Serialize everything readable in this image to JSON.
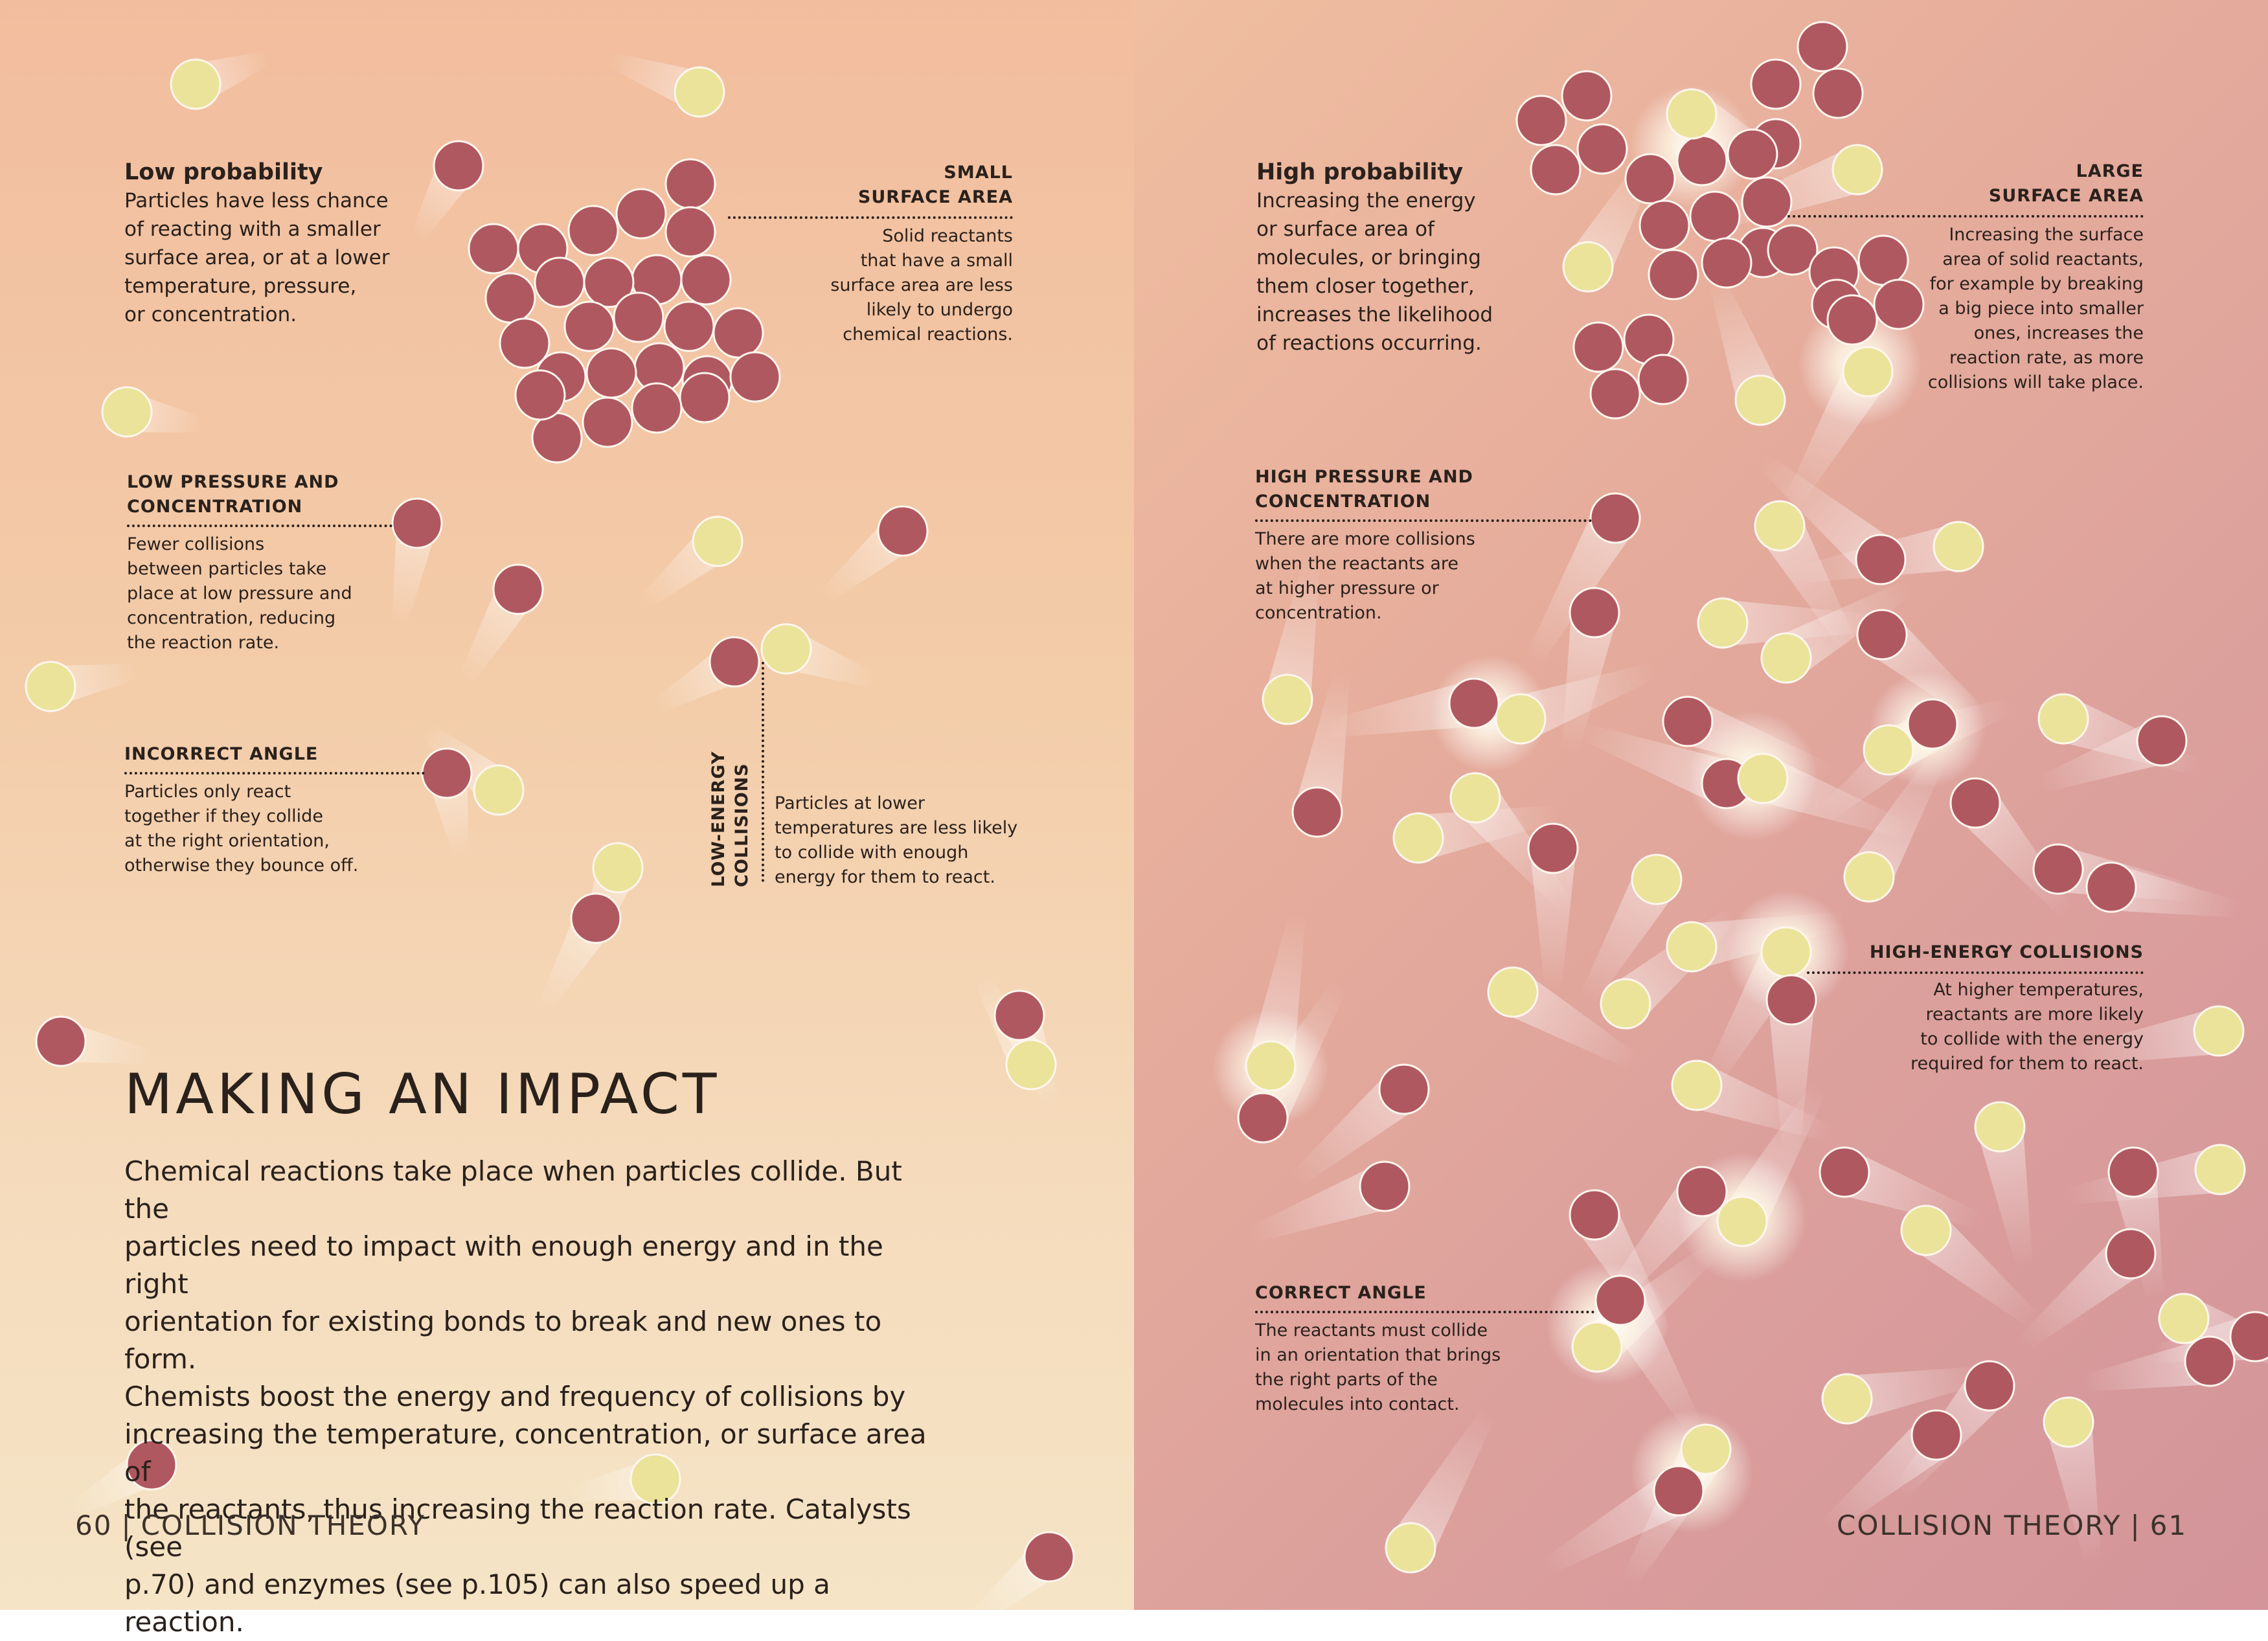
{
  "left_page": {
    "low_probability": {
      "heading": "Low probability",
      "lines": [
        "Particles have less chance",
        "of reacting with a smaller",
        "surface area, or at a lower",
        "temperature, pressure,",
        "or concentration."
      ]
    },
    "small_surface_area": {
      "label_lines": [
        "SMALL",
        "SURFACE AREA"
      ],
      "lines": [
        "Solid reactants",
        "that have a small",
        "surface area are less",
        "likely to undergo",
        "chemical reactions."
      ]
    },
    "low_pressure": {
      "label_lines": [
        "LOW PRESSURE AND",
        "CONCENTRATION"
      ],
      "lines": [
        "Fewer collisions",
        "between particles take",
        "place at low pressure and",
        "concentration, reducing",
        "the reaction rate."
      ]
    },
    "incorrect_angle": {
      "label": "INCORRECT ANGLE",
      "lines": [
        "Particles only react",
        "together if they collide",
        "at the right orientation,",
        "otherwise they bounce off."
      ]
    },
    "low_energy": {
      "label_lines": [
        "LOW-ENERGY",
        "COLLISIONS"
      ],
      "lines": [
        "Particles at lower",
        "temperatures are less likely",
        "to collide with enough",
        "energy for them to react."
      ]
    },
    "title": "MAKING AN IMPACT",
    "body_lines": [
      "Chemical reactions take place when particles collide. But the",
      "particles need to impact with enough energy and in the right",
      "orientation for existing bonds to break and new ones to form.",
      "Chemists boost the energy and frequency of collisions by",
      "increasing the temperature, concentration, or surface area of",
      "the reactants, thus increasing the reaction rate. Catalysts (see",
      "p.70) and enzymes (see p.105) can also speed up a reaction."
    ],
    "folio": {
      "number": "60",
      "separator": "|",
      "section": "COLLISION THEORY"
    }
  },
  "right_page": {
    "high_probability": {
      "heading": "High probability",
      "lines": [
        "Increasing the energy",
        "or surface area of",
        "molecules, or bringing",
        "them closer together,",
        "increases the likelihood",
        "of reactions occurring."
      ]
    },
    "large_surface_area": {
      "label_lines": [
        "LARGE",
        "SURFACE AREA"
      ],
      "lines": [
        "Increasing the surface",
        "area of solid reactants,",
        "for example by breaking",
        "a big piece into smaller",
        "ones, increases the",
        "reaction rate, as more",
        "collisions will take place."
      ]
    },
    "high_pressure": {
      "label_lines": [
        "HIGH PRESSURE AND",
        "CONCENTRATION"
      ],
      "lines": [
        "There are more collisions",
        "when the reactants are",
        "at higher pressure or",
        "concentration."
      ]
    },
    "high_energy": {
      "label": "HIGH-ENERGY COLLISIONS",
      "lines": [
        "At higher temperatures,",
        "reactants are more likely",
        "to collide with the energy",
        "required for them to react."
      ]
    },
    "correct_angle": {
      "label": "CORRECT ANGLE",
      "lines": [
        "The reactants must collide",
        "in an orientation that brings",
        "the right parts of the",
        "molecules into contact."
      ]
    },
    "folio": {
      "section": "COLLISION THEORY",
      "separator": "|",
      "number": "61"
    }
  },
  "colors": {
    "red_particle": "#b05860",
    "yellow_particle": "#ebe39a",
    "text": "#2a211c"
  }
}
